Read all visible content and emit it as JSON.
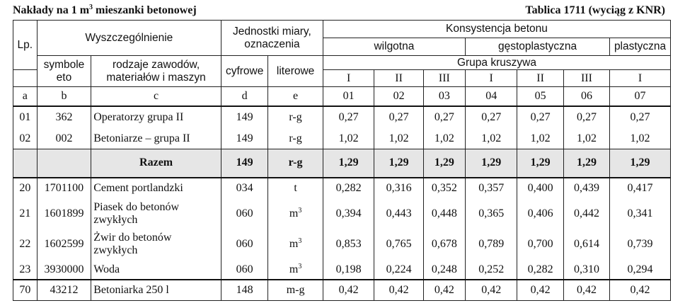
{
  "caption": {
    "left_prefix": "Nakłady na 1 m",
    "left_sup": "3",
    "left_suffix": " mieszanki betonowej",
    "right": "Tablica 1711 (wyciąg z KNR)"
  },
  "headers": {
    "lp": "Lp.",
    "wyszczegolnienie": "Wyszczególnienie",
    "jednostki_line1": "Jednostki miary,",
    "jednostki_line2": "oznaczenia",
    "konsystencja": "Konsystencja betonu",
    "wilgotna": "wilgotna",
    "gestoplastyczna": "gęstoplastyczna",
    "plastyczna": "plastyczna",
    "symbole_line1": "symbole",
    "symbole_line2": "eto",
    "rodzaje_line1": "rodzaje zawodów,",
    "rodzaje_line2": "materiałów i maszyn",
    "cyfrowe": "cyfrowe",
    "literowe": "literowe",
    "grupa_kruszywa": "Grupa kruszywa",
    "groups": [
      "I",
      "II",
      "III",
      "I",
      "II",
      "III",
      "I"
    ]
  },
  "code_row": {
    "a": "a",
    "b": "b",
    "c": "c",
    "d": "d",
    "e": "e",
    "cols": [
      "01",
      "02",
      "03",
      "04",
      "05",
      "06",
      "07"
    ]
  },
  "labor": [
    {
      "lp": "01",
      "symbol": "362",
      "name": "Operatorzy grupa II",
      "cyfrowe": "149",
      "literowe": "r-g",
      "values": [
        "0,27",
        "0,27",
        "0,27",
        "0,27",
        "0,27",
        "0,27",
        "0,27"
      ]
    },
    {
      "lp": "02",
      "symbol": "002",
      "name": "Betoniarze – grupa II",
      "cyfrowe": "149",
      "literowe": "r-g",
      "values": [
        "1,02",
        "1,02",
        "1,02",
        "1,02",
        "1,02",
        "1,02",
        "1,02"
      ]
    }
  ],
  "razem": {
    "label": "Razem",
    "cyfrowe": "149",
    "literowe": "r-g",
    "values": [
      "1,29",
      "1,29",
      "1,29",
      "1,29",
      "1,29",
      "1,29",
      "1,29"
    ]
  },
  "materials": {
    "cement": {
      "lp": "20",
      "symbol": "1701100",
      "name": "Cement portlandzki",
      "cyfrowe": "034",
      "literowe": "t",
      "values": [
        "0,282",
        "0,316",
        "0,352",
        "0,357",
        "0,400",
        "0,439",
        "0,417"
      ]
    },
    "piasek": {
      "lp": "21",
      "symbol": "1601899",
      "name_line1": "Piasek do betonów",
      "name_line2": "zwykłych",
      "cyfrowe": "060",
      "unit": "m",
      "unit_sup": "3",
      "values": [
        "0,394",
        "0,443",
        "0,448",
        "0,365",
        "0,406",
        "0,442",
        "0,341"
      ]
    },
    "zwir": {
      "lp": "22",
      "symbol": "1602599",
      "name_line1": "Żwir do betonów",
      "name_line2": "zwykłych",
      "cyfrowe": "060",
      "unit": "m",
      "unit_sup": "3",
      "values": [
        "0,853",
        "0,765",
        "0,678",
        "0,789",
        "0,700",
        "0,614",
        "0,739"
      ]
    },
    "woda": {
      "lp": "23",
      "symbol": "3930000",
      "name": "Woda",
      "cyfrowe": "060",
      "unit": "m",
      "unit_sup": "3",
      "values": [
        "0,198",
        "0,224",
        "0,248",
        "0,252",
        "0,282",
        "0,310",
        "0,294"
      ]
    }
  },
  "machine": {
    "lp": "70",
    "symbol": "43212",
    "name": "Betoniarka 250 l",
    "cyfrowe": "148",
    "literowe": "m-g",
    "values": [
      "0,42",
      "0,42",
      "0,42",
      "0,42",
      "0,42",
      "0,42",
      "0,42"
    ]
  }
}
